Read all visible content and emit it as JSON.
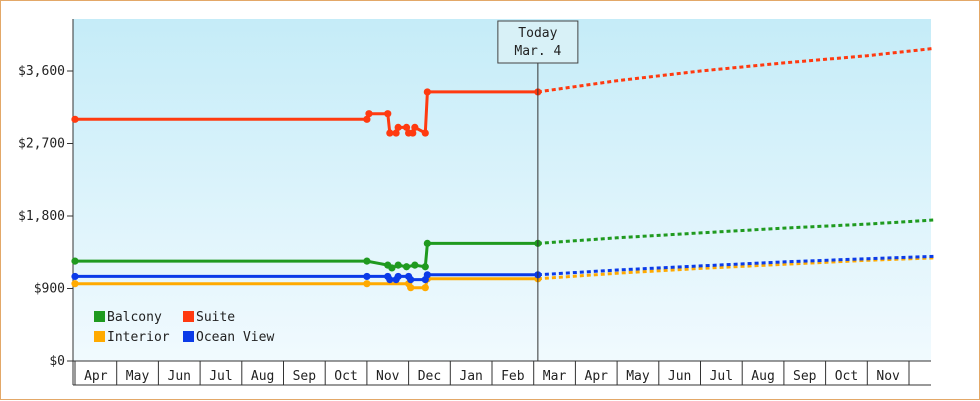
{
  "chart_data": {
    "type": "line",
    "style": "step",
    "y_ticks": [
      "$0",
      "$900",
      "$1,800",
      "$2,700",
      "$3,600"
    ],
    "ylim": [
      0,
      3600
    ],
    "grid": false,
    "x_ticks": [
      "Apr",
      "May",
      "Jun",
      "Jul",
      "Aug",
      "Sep",
      "Oct",
      "Nov",
      "Dec",
      "Jan",
      "Feb",
      "Mar",
      "Apr",
      "May",
      "Jun",
      "Jul",
      "Aug",
      "Sep",
      "Oct",
      "Nov"
    ],
    "xlim": [
      0,
      20.6
    ],
    "legend_position": "bottom-left",
    "today_marker": {
      "line1": "Today",
      "line2": "Mar. 4",
      "x": 11.1
    },
    "series": [
      {
        "name": "Balcony",
        "color": "#1f9a1f",
        "points": [
          [
            0.0,
            1240
          ],
          [
            7.0,
            1240
          ],
          [
            7.5,
            1190
          ],
          [
            7.6,
            1155
          ],
          [
            7.75,
            1190
          ],
          [
            7.95,
            1170
          ],
          [
            8.15,
            1190
          ],
          [
            8.4,
            1170
          ],
          [
            8.45,
            1460
          ],
          [
            11.1,
            1460
          ]
        ],
        "forecast": [
          [
            11.1,
            1460
          ],
          [
            13,
            1530
          ],
          [
            15,
            1590
          ],
          [
            17,
            1650
          ],
          [
            19,
            1700
          ],
          [
            20.6,
            1750
          ]
        ]
      },
      {
        "name": "Suite",
        "color": "#ff3a10",
        "points": [
          [
            0.0,
            3000
          ],
          [
            7.0,
            3000
          ],
          [
            7.05,
            3070
          ],
          [
            7.5,
            3070
          ],
          [
            7.55,
            2830
          ],
          [
            7.7,
            2830
          ],
          [
            7.75,
            2900
          ],
          [
            7.95,
            2900
          ],
          [
            8.0,
            2830
          ],
          [
            8.1,
            2830
          ],
          [
            8.15,
            2900
          ],
          [
            8.4,
            2830
          ],
          [
            8.45,
            3340
          ],
          [
            11.1,
            3340
          ]
        ],
        "forecast": [
          [
            11.1,
            3340
          ],
          [
            13,
            3480
          ],
          [
            15,
            3600
          ],
          [
            17,
            3700
          ],
          [
            19,
            3790
          ],
          [
            20.6,
            3880
          ]
        ]
      },
      {
        "name": "Interior",
        "color": "#ffaa00",
        "points": [
          [
            0.0,
            960
          ],
          [
            7.0,
            960
          ],
          [
            8.0,
            960
          ],
          [
            8.05,
            910
          ],
          [
            8.4,
            910
          ],
          [
            8.45,
            1020
          ],
          [
            11.1,
            1020
          ]
        ],
        "forecast": [
          [
            11.1,
            1020
          ],
          [
            13,
            1090
          ],
          [
            15,
            1150
          ],
          [
            17,
            1200
          ],
          [
            19,
            1250
          ],
          [
            20.6,
            1280
          ]
        ]
      },
      {
        "name": "Ocean View",
        "color": "#0b3be8",
        "points": [
          [
            0.0,
            1050
          ],
          [
            7.0,
            1050
          ],
          [
            7.5,
            1050
          ],
          [
            7.55,
            1010
          ],
          [
            7.7,
            1010
          ],
          [
            7.75,
            1050
          ],
          [
            8.0,
            1050
          ],
          [
            8.05,
            1010
          ],
          [
            8.4,
            1010
          ],
          [
            8.45,
            1070
          ],
          [
            11.1,
            1070
          ]
        ],
        "forecast": [
          [
            11.1,
            1070
          ],
          [
            13,
            1130
          ],
          [
            15,
            1180
          ],
          [
            17,
            1230
          ],
          [
            19,
            1270
          ],
          [
            20.6,
            1300
          ]
        ]
      }
    ],
    "legend": [
      {
        "name": "Balcony",
        "color": "#1f9a1f"
      },
      {
        "name": "Suite",
        "color": "#ff3a10"
      },
      {
        "name": "Interior",
        "color": "#ffaa00"
      },
      {
        "name": "Ocean View",
        "color": "#0b3be8"
      }
    ]
  }
}
